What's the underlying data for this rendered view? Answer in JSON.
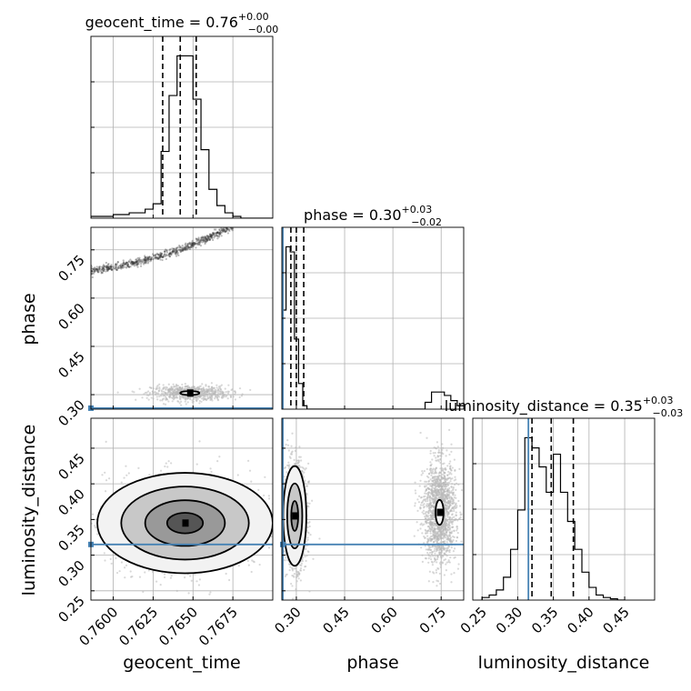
{
  "chart_data": {
    "type": "corner",
    "parameters": [
      "geocent_time",
      "phase",
      "luminosity_distance"
    ],
    "axis_labels": {
      "geocent_time": "geocent_time",
      "phase": "phase",
      "luminosity_distance": "luminosity_distance"
    },
    "titles": {
      "geocent_time": {
        "name": "geocent_time",
        "value": "0.76",
        "plus": "+0.00",
        "minus": "−0.00"
      },
      "phase": {
        "name": "phase",
        "value": "0.30",
        "plus": "+0.03",
        "minus": "−0.02"
      },
      "luminosity_distance": {
        "name": "luminosity_distance",
        "value": "0.35",
        "plus": "+0.03",
        "minus": "−0.03"
      }
    },
    "ranges": {
      "geocent_time": [
        0.7586,
        0.77
      ],
      "phase": [
        0.255,
        0.82
      ],
      "luminosity_distance": [
        0.237,
        0.492
      ]
    },
    "ticks": {
      "geocent_time": [
        0.76,
        0.7625,
        0.765,
        0.7675
      ],
      "phase": [
        0.3,
        0.45,
        0.6,
        0.75
      ],
      "luminosity_distance": [
        0.25,
        0.3,
        0.35,
        0.4,
        0.45
      ]
    },
    "tick_labels": {
      "geocent_time": [
        "0.7600",
        "0.7625",
        "0.7650",
        "0.7675"
      ],
      "phase": [
        "0.30",
        "0.45",
        "0.60",
        "0.75"
      ],
      "luminosity_distance": [
        "0.25",
        "0.30",
        "0.35",
        "0.40",
        "0.45"
      ]
    },
    "truths": {
      "geocent_time": null,
      "phase": 0.258,
      "luminosity_distance": 0.315
    },
    "quantiles": {
      "geocent_time": [
        0.7631,
        0.7642,
        0.7652
      ],
      "phase": [
        0.283,
        0.3,
        0.323
      ],
      "luminosity_distance": [
        0.32,
        0.347,
        0.378
      ]
    },
    "histograms": {
      "geocent_time": {
        "edges": [
          0.7586,
          0.76,
          0.761,
          0.762,
          0.7625,
          0.763,
          0.7635,
          0.764,
          0.7645,
          0.765,
          0.7655,
          0.766,
          0.7665,
          0.767,
          0.7675,
          0.768,
          0.769,
          0.77
        ],
        "counts": [
          1,
          2,
          3,
          5,
          8,
          37,
          68,
          90,
          90,
          66,
          38,
          16,
          7,
          3,
          1,
          0,
          0
        ]
      },
      "phase": {
        "edges": [
          0.255,
          0.268,
          0.281,
          0.294,
          0.307,
          0.32,
          0.333,
          0.4,
          0.7,
          0.72,
          0.74,
          0.76,
          0.78,
          0.8,
          0.82
        ],
        "counts": [
          58,
          95,
          92,
          41,
          15,
          2,
          0,
          0,
          4,
          10,
          10,
          8,
          5,
          2
        ]
      },
      "luminosity_distance": {
        "edges": [
          0.25,
          0.26,
          0.27,
          0.28,
          0.29,
          0.3,
          0.31,
          0.32,
          0.33,
          0.34,
          0.35,
          0.36,
          0.37,
          0.38,
          0.39,
          0.4,
          0.41,
          0.42,
          0.43,
          0.44,
          0.45
        ],
        "counts": [
          2,
          4,
          8,
          18,
          40,
          71,
          128,
          120,
          105,
          85,
          115,
          85,
          62,
          40,
          22,
          10,
          4,
          2,
          1,
          0
        ]
      }
    },
    "scatter_2d": {
      "phase_vs_geocent_time": {
        "clusters": [
          {
            "x": [
              0.7586,
              0.7677
            ],
            "y": [
              0.685,
              0.83
            ],
            "kind": "band"
          },
          {
            "x": 0.7648,
            "y": 0.305,
            "sx": 0.0012,
            "sy": 0.012,
            "kind": "blob"
          }
        ]
      },
      "luminosity_distance_vs_geocent_time": {
        "clusters": [
          {
            "x": 0.7645,
            "y": 0.345,
            "sx": 0.0025,
            "sy": 0.032,
            "kind": "blob"
          }
        ]
      },
      "luminosity_distance_vs_phase": {
        "clusters": [
          {
            "x": 0.295,
            "y": 0.355,
            "sx": 0.018,
            "sy": 0.035,
            "kind": "blob"
          },
          {
            "x": 0.745,
            "y": 0.36,
            "sx": 0.025,
            "sy": 0.035,
            "kind": "blob"
          }
        ]
      }
    },
    "grid": true
  },
  "colors": {
    "truth": "#4682b4",
    "line": "#000000",
    "grid": "#b0b0b0",
    "point": "#b8b8b8"
  }
}
